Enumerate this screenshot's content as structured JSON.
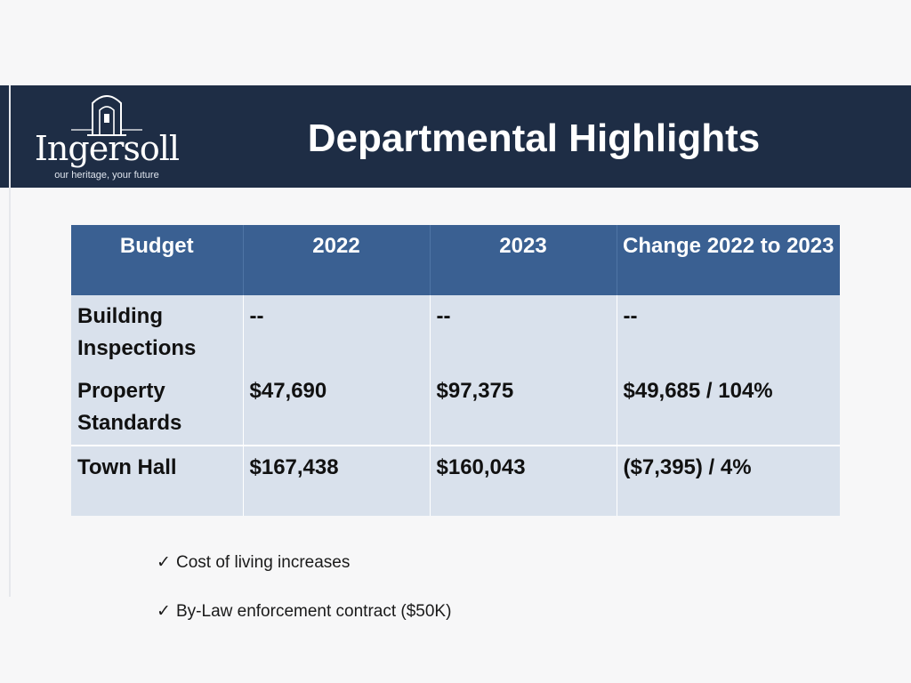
{
  "logo": {
    "name": "Ingersoll",
    "tagline": "our heritage, your future"
  },
  "header": {
    "title": "Departmental Highlights"
  },
  "table": {
    "headers": [
      "Budget",
      "2022",
      "2023",
      "Change 2022 to 2023"
    ],
    "rows": [
      [
        "Building Inspections",
        "--",
        "--",
        "--"
      ],
      [
        "Property Standards",
        "$47,690",
        "$97,375",
        "$49,685 / 104%"
      ],
      [
        "Town Hall",
        "$167,438",
        "$160,043",
        "($7,395) / 4%"
      ]
    ]
  },
  "notes": [
    "Cost of living increases",
    "By-Law enforcement contract ($50K)"
  ],
  "colors": {
    "header_bg": "#1e2d45",
    "table_header_bg": "#3a6092",
    "table_cell_bg": "#d9e1ec",
    "page_bg": "#f7f7f8"
  }
}
